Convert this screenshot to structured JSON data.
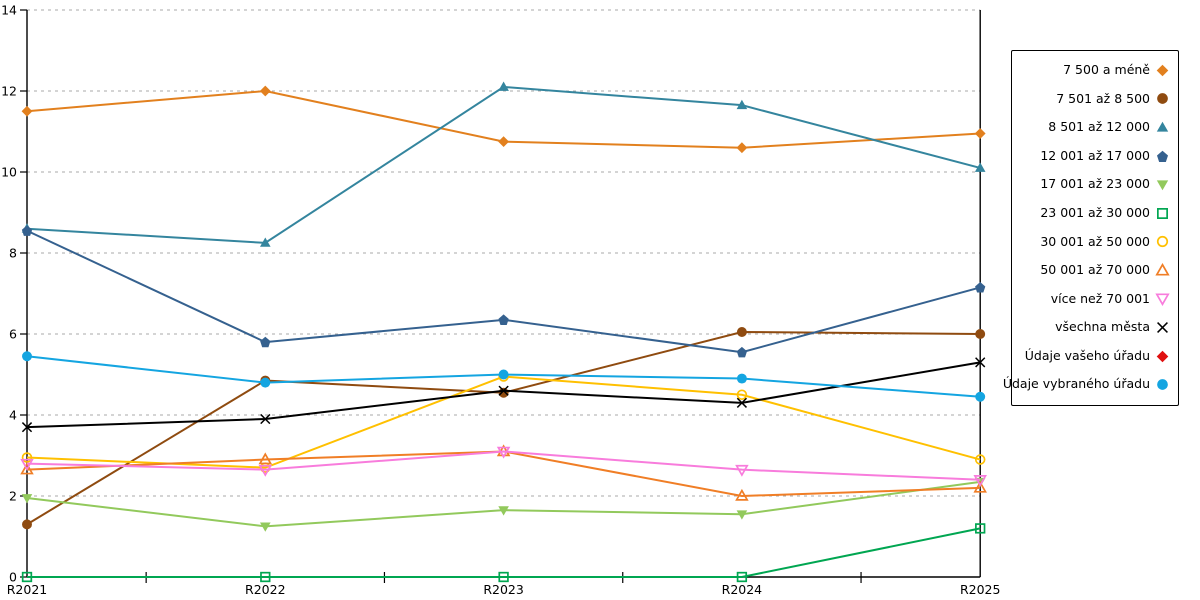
{
  "chart_data": {
    "type": "line",
    "title": "",
    "xlabel": "",
    "ylabel": "",
    "categories": [
      "R2021",
      "R2022",
      "R2023",
      "R2024",
      "R2025"
    ],
    "ylim": [
      0,
      14
    ],
    "yticks": [
      0,
      2,
      4,
      6,
      8,
      10,
      12,
      14
    ],
    "grid": "horizontal dashed gray",
    "legend_position": "right",
    "axis_color": "#000000",
    "gridline_color": "#aaaaaa",
    "series": [
      {
        "name": "7 500 a méně",
        "color": "#E2801E",
        "marker": "diamond",
        "values": [
          11.5,
          12.0,
          10.75,
          10.6,
          10.95
        ]
      },
      {
        "name": "7 501 až 8 500",
        "color": "#8F4B10",
        "marker": "circle",
        "values": [
          1.3,
          4.85,
          4.55,
          6.05,
          6.0
        ]
      },
      {
        "name": "8 501 až 12 000",
        "color": "#34859E",
        "marker": "triangle-up",
        "values": [
          8.6,
          8.25,
          12.1,
          11.65,
          10.1
        ]
      },
      {
        "name": "12 001 až 17 000",
        "color": "#35618F",
        "marker": "pentagon",
        "values": [
          8.55,
          5.8,
          6.35,
          5.55,
          7.15
        ]
      },
      {
        "name": "17 001 až 23 000",
        "color": "#92C95C",
        "marker": "triangle-down",
        "values": [
          1.95,
          1.25,
          1.65,
          1.55,
          2.35
        ]
      },
      {
        "name": "23 001 až 30 000",
        "color": "#00A651",
        "marker": "square-open",
        "values": [
          0,
          0,
          0,
          0,
          1.2
        ]
      },
      {
        "name": "30 001 až 50 000",
        "color": "#FFC000",
        "marker": "circle-open",
        "values": [
          2.95,
          2.7,
          4.95,
          4.5,
          2.9
        ]
      },
      {
        "name": "50 001 až 70 000",
        "color": "#F07E26",
        "marker": "triangle-up-open",
        "values": [
          2.65,
          2.9,
          3.1,
          2.0,
          2.2
        ]
      },
      {
        "name": "více než 70 001",
        "color": "#F87CDC",
        "marker": "triangle-down-open",
        "values": [
          2.8,
          2.65,
          3.1,
          2.65,
          2.4
        ]
      },
      {
        "name": "všechna města",
        "color": "#000000",
        "marker": "x",
        "values": [
          3.7,
          3.9,
          4.6,
          4.3,
          5.3
        ]
      },
      {
        "name": "Údaje vašeho úřadu",
        "color": "#E01010",
        "marker": "diamond",
        "values": []
      },
      {
        "name": "Údaje vybraného úřadu",
        "color": "#14A5E1",
        "marker": "circle",
        "values": [
          5.45,
          4.8,
          5.0,
          4.9,
          4.45
        ]
      }
    ]
  }
}
